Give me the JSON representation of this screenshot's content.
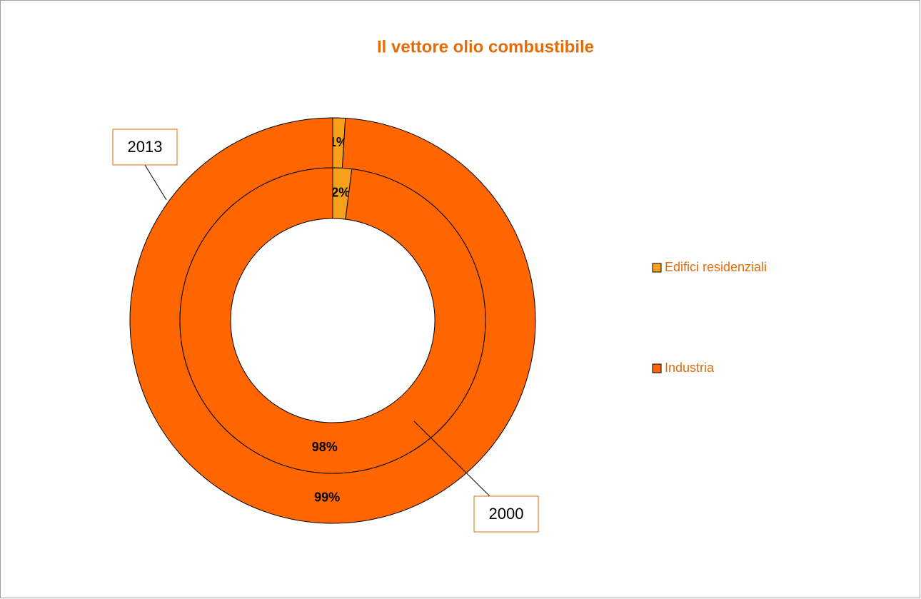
{
  "chart_data": {
    "type": "donut",
    "title": "Il vettore olio combustibile",
    "categories": [
      "Edifici residenziali",
      "Industria"
    ],
    "colors": [
      "#f7a11a",
      "#ff6600"
    ],
    "series": [
      {
        "name": "2013",
        "values": [
          1,
          99
        ],
        "value_labels": [
          "1%",
          "99%"
        ]
      },
      {
        "name": "2000",
        "values": [
          2,
          98
        ],
        "value_labels": [
          "2%",
          "98%"
        ]
      }
    ],
    "legend": "right"
  }
}
